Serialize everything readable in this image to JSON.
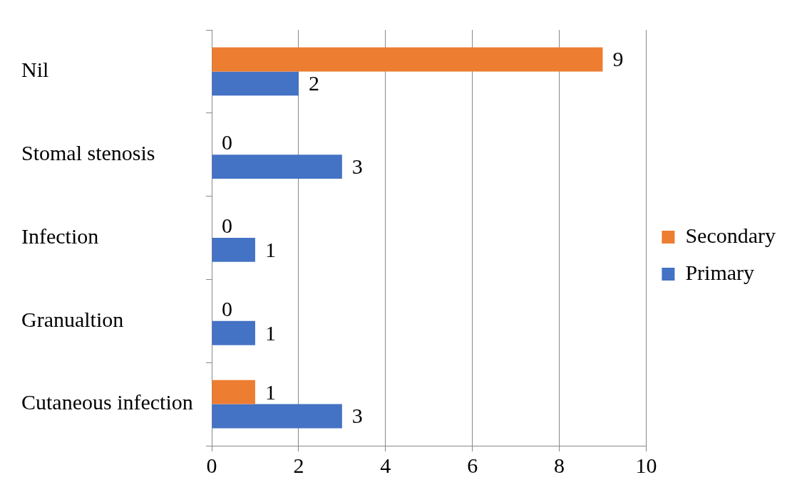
{
  "chart_data": {
    "type": "bar",
    "orientation": "horizontal",
    "categories": [
      "Nil",
      "Stomal stenosis",
      "Infection",
      "Granualtion",
      "Cutaneous infection"
    ],
    "series": [
      {
        "name": "Secondary",
        "color": "#ed7d31",
        "values": [
          9,
          0,
          0,
          0,
          1
        ]
      },
      {
        "name": "Primary",
        "color": "#4472c4",
        "values": [
          2,
          3,
          1,
          1,
          3
        ]
      }
    ],
    "xlim": [
      0,
      10
    ],
    "xticks": [
      0,
      2,
      4,
      6,
      8,
      10
    ],
    "grid": "x",
    "legend": "right",
    "data_labels": true
  }
}
